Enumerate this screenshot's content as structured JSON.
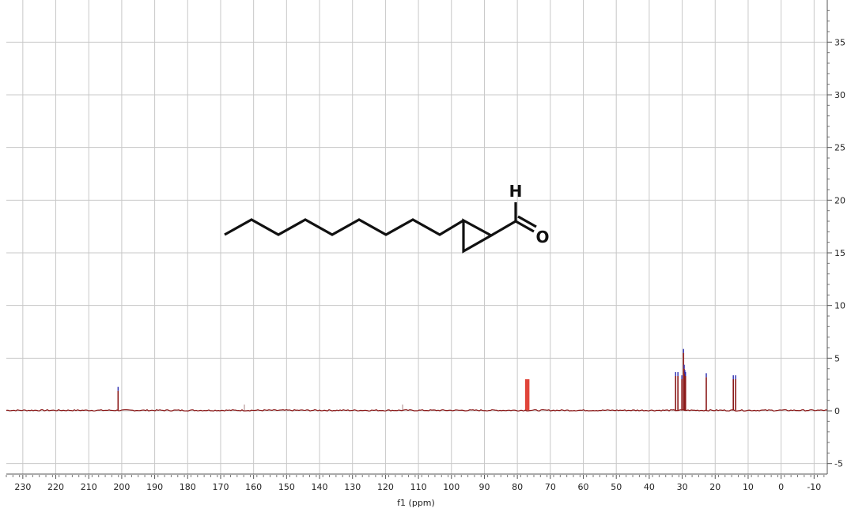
{
  "chart_data": {
    "type": "line",
    "xlabel": "f1 (ppm)",
    "ylabel": "",
    "xlim": [
      235,
      -14
    ],
    "ylim": [
      -6,
      39
    ],
    "x_reversed": true,
    "grid": true,
    "x_ticks": [
      "230",
      "220",
      "210",
      "200",
      "190",
      "180",
      "170",
      "160",
      "150",
      "140",
      "130",
      "120",
      "110",
      "100",
      "90",
      "80",
      "70",
      "60",
      "50",
      "40",
      "30",
      "20",
      "10",
      "0",
      "-10"
    ],
    "y_ticks": [
      "35",
      "30",
      "25",
      "20",
      "15",
      "10",
      "5",
      "0",
      "-5"
    ],
    "baseline": 0.05,
    "series": [
      {
        "peaks": [
          {
            "x": 201.1,
            "h": 1.9
          },
          {
            "x": 162.8,
            "h": 0.6
          },
          {
            "x": 114.8,
            "h": 0.6
          },
          {
            "x": 77.4,
            "h": 3.0
          },
          {
            "x": 77.0,
            "h": 3.0
          },
          {
            "x": 76.6,
            "h": 3.0
          },
          {
            "x": 32.0,
            "h": 3.3
          },
          {
            "x": 31.3,
            "h": 3.3
          },
          {
            "x": 30.1,
            "h": 3.0
          },
          {
            "x": 29.6,
            "h": 5.5
          },
          {
            "x": 29.4,
            "h": 4.0
          },
          {
            "x": 29.2,
            "h": 3.5
          },
          {
            "x": 29.0,
            "h": 3.3
          },
          {
            "x": 22.7,
            "h": 3.2
          },
          {
            "x": 14.5,
            "h": 3.0
          },
          {
            "x": 13.8,
            "h": 3.0
          }
        ]
      }
    ],
    "colors": {
      "spectrum": "#8b1a1a",
      "peak_marker": "#2b2bb0",
      "solvent": "#e0453a",
      "grid": "#c8c8c8"
    },
    "structure": {
      "atom_labels": {
        "hydrogen": "H",
        "oxygen": "O"
      }
    }
  }
}
